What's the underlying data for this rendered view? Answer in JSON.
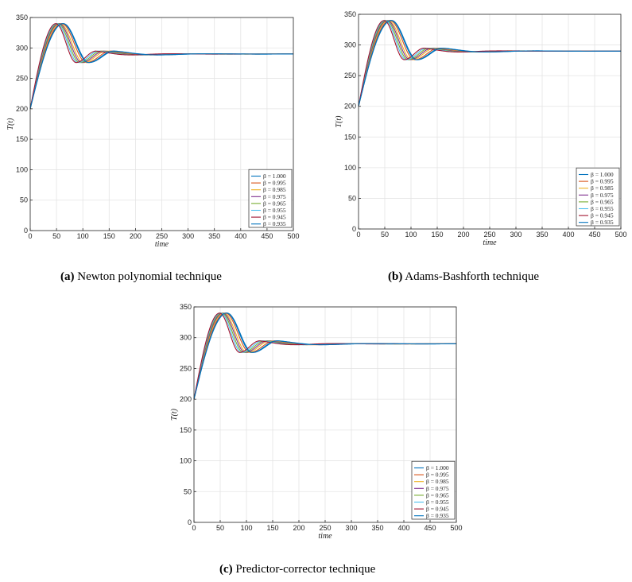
{
  "panels": [
    {
      "letter": "(a)",
      "caption": "Newton polynomial technique"
    },
    {
      "letter": "(b)",
      "caption": "Adams-Bashforth technique"
    },
    {
      "letter": "(c)",
      "caption": "Predictor-corrector technique"
    }
  ],
  "chart_data": [
    {
      "type": "line",
      "xlabel": "time",
      "ylabel": "T(t)",
      "xlim": [
        0,
        500
      ],
      "ylim": [
        0,
        350
      ],
      "xticks": [
        0,
        50,
        100,
        150,
        200,
        250,
        300,
        350,
        400,
        450,
        500
      ],
      "yticks": [
        0,
        50,
        100,
        150,
        200,
        250,
        300,
        350
      ],
      "grid": true,
      "legend": "bottom-right",
      "series": [
        {
          "name": "β = 1.000",
          "color": "#0072BD",
          "peak_x": 63,
          "peak_y": 340
        },
        {
          "name": "β = 0.995",
          "color": "#D95319",
          "peak_x": 60,
          "peak_y": 340
        },
        {
          "name": "β = 0.985",
          "color": "#EDB120",
          "peak_x": 57,
          "peak_y": 340
        },
        {
          "name": "β = 0.975",
          "color": "#7E2F8E",
          "peak_x": 55,
          "peak_y": 340
        },
        {
          "name": "β = 0.965",
          "color": "#77AC30",
          "peak_x": 53,
          "peak_y": 340
        },
        {
          "name": "β = 0.955",
          "color": "#4DBEEE",
          "peak_x": 51,
          "peak_y": 340
        },
        {
          "name": "β = 0.945",
          "color": "#A2142F",
          "peak_x": 49,
          "peak_y": 340
        },
        {
          "name": "β = 0.935",
          "color": "#0072BD",
          "peak_x": 62,
          "peak_y": 340
        }
      ],
      "start_y": 200,
      "trough_y": 276,
      "steady_y": 290
    },
    {
      "type": "line",
      "xlabel": "time",
      "ylabel": "T(t)",
      "xlim": [
        0,
        500
      ],
      "ylim": [
        0,
        350
      ],
      "xticks": [
        0,
        50,
        100,
        150,
        200,
        250,
        300,
        350,
        400,
        450,
        500
      ],
      "yticks": [
        0,
        50,
        100,
        150,
        200,
        250,
        300,
        350
      ],
      "grid": true,
      "legend": "bottom-right",
      "series": [
        {
          "name": "β = 1.000",
          "color": "#0072BD",
          "peak_x": 63,
          "peak_y": 340
        },
        {
          "name": "β = 0.995",
          "color": "#D95319",
          "peak_x": 60,
          "peak_y": 340
        },
        {
          "name": "β = 0.985",
          "color": "#EDB120",
          "peak_x": 57,
          "peak_y": 340
        },
        {
          "name": "β = 0.975",
          "color": "#7E2F8E",
          "peak_x": 55,
          "peak_y": 340
        },
        {
          "name": "β = 0.965",
          "color": "#77AC30",
          "peak_x": 53,
          "peak_y": 340
        },
        {
          "name": "β = 0.955",
          "color": "#4DBEEE",
          "peak_x": 51,
          "peak_y": 340
        },
        {
          "name": "β = 0.945",
          "color": "#A2142F",
          "peak_x": 49,
          "peak_y": 340
        },
        {
          "name": "β = 0.935",
          "color": "#0072BD",
          "peak_x": 62,
          "peak_y": 340
        }
      ],
      "start_y": 200,
      "trough_y": 276,
      "steady_y": 290
    },
    {
      "type": "line",
      "xlabel": "time",
      "ylabel": "T(t)",
      "xlim": [
        0,
        500
      ],
      "ylim": [
        0,
        350
      ],
      "xticks": [
        0,
        50,
        100,
        150,
        200,
        250,
        300,
        350,
        400,
        450,
        500
      ],
      "yticks": [
        0,
        50,
        100,
        150,
        200,
        250,
        300,
        350
      ],
      "grid": true,
      "legend": "bottom-right",
      "series": [
        {
          "name": "β = 1.000",
          "color": "#0072BD",
          "peak_x": 63,
          "peak_y": 340
        },
        {
          "name": "β = 0.995",
          "color": "#D95319",
          "peak_x": 60,
          "peak_y": 340
        },
        {
          "name": "β = 0.985",
          "color": "#EDB120",
          "peak_x": 57,
          "peak_y": 340
        },
        {
          "name": "β = 0.975",
          "color": "#7E2F8E",
          "peak_x": 55,
          "peak_y": 340
        },
        {
          "name": "β = 0.965",
          "color": "#77AC30",
          "peak_x": 53,
          "peak_y": 340
        },
        {
          "name": "β = 0.955",
          "color": "#4DBEEE",
          "peak_x": 51,
          "peak_y": 340
        },
        {
          "name": "β = 0.945",
          "color": "#A2142F",
          "peak_x": 49,
          "peak_y": 340
        },
        {
          "name": "β = 0.935",
          "color": "#0072BD",
          "peak_x": 62,
          "peak_y": 340
        }
      ],
      "start_y": 200,
      "trough_y": 276,
      "steady_y": 290
    }
  ]
}
